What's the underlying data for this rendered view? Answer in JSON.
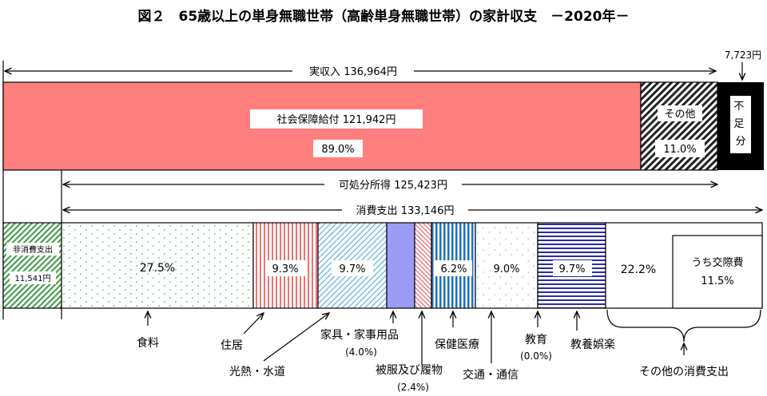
{
  "title": "図２　65歳以上の単身無職世帯（高齢単身無職世帯）の家計収支　－2020年－",
  "chart_data": {
    "type": "bar",
    "unit": "円",
    "income": {
      "label": "実収入",
      "total": 136964,
      "total_text": "136,964円",
      "segments": [
        {
          "name": "社会保障給付",
          "value": 121942,
          "value_text": "121,942円",
          "share": 89.0,
          "share_text": "89.0%",
          "color": "#ff7f7f"
        },
        {
          "name": "その他",
          "share": 11.0,
          "share_text": "11.0%",
          "color": "#555555"
        }
      ],
      "deficit": {
        "name": "不足分",
        "value": 7723,
        "value_text": "7,723円",
        "color": "#000000"
      }
    },
    "disposable": {
      "label": "可処分所得",
      "value": 125423,
      "value_text": "125,423円"
    },
    "consumption": {
      "label": "消費支出",
      "value": 133146,
      "value_text": "133,146円"
    },
    "expenditure": {
      "non_consumption": {
        "name": "非消費支出",
        "value": 11541,
        "value_text": "11,541円",
        "color": "#4caf50"
      },
      "segments": [
        {
          "name": "食料",
          "share": 27.5,
          "share_text": "27.5%",
          "color": "#4caf50"
        },
        {
          "name": "住居",
          "share": 9.3,
          "share_text": "9.3%",
          "color": "#f07070"
        },
        {
          "name": "光熱・水道",
          "share": 9.7,
          "share_text": "9.7%",
          "color": "#5bb0e0"
        },
        {
          "name": "家具・家事用品",
          "share": 4.0,
          "share_text": "(4.0%)",
          "color": "#9b9bf5"
        },
        {
          "name": "被服及び履物",
          "share": 2.4,
          "share_text": "(2.4%)",
          "color": "#f08080"
        },
        {
          "name": "保健医療",
          "share": 6.2,
          "share_text": "6.2%",
          "color": "#1f6fc5"
        },
        {
          "name": "交通・通信",
          "share": 9.0,
          "share_text": "9.0%",
          "color": "#8080e0"
        },
        {
          "name": "教育",
          "share": 0.0,
          "share_text": "(0.0%)",
          "color": "#000000"
        },
        {
          "name": "教養娯楽",
          "share": 9.7,
          "share_text": "9.7%",
          "color": "#2020a0"
        },
        {
          "name": "その他の消費支出",
          "share": 22.2,
          "share_text": "22.2%",
          "color": "#000000",
          "sub": {
            "name": "うち交際費",
            "share": 11.5,
            "share_text": "11.5%"
          }
        }
      ]
    }
  }
}
